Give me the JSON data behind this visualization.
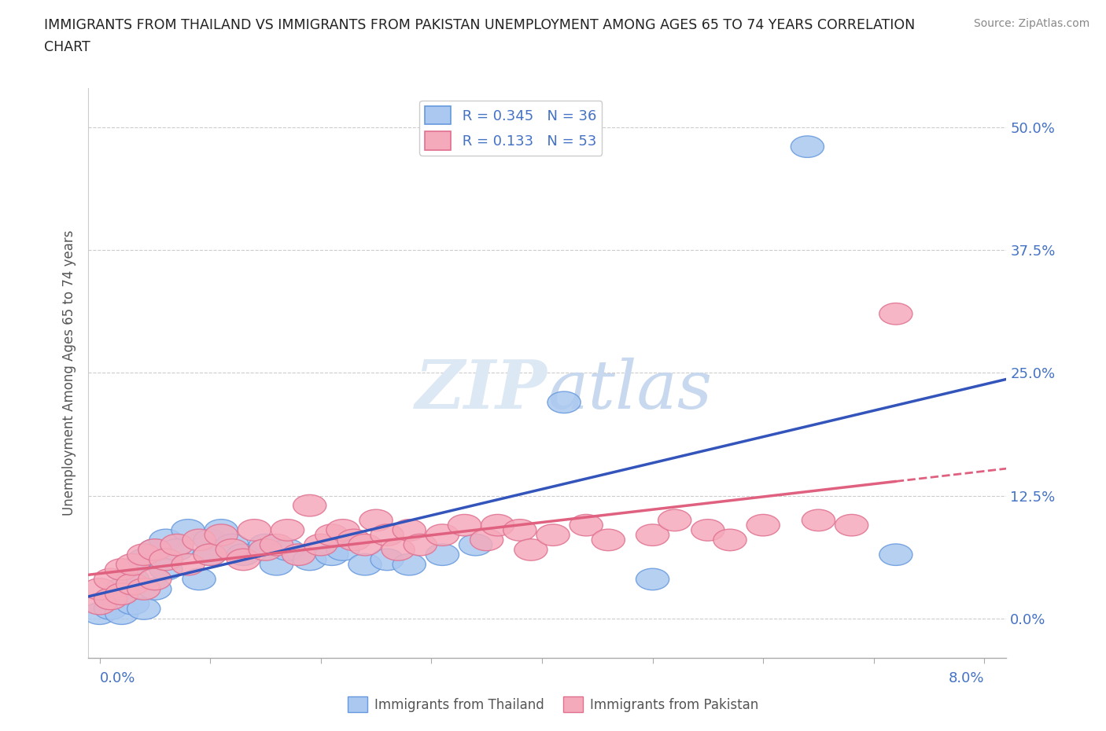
{
  "title_line1": "IMMIGRANTS FROM THAILAND VS IMMIGRANTS FROM PAKISTAN UNEMPLOYMENT AMONG AGES 65 TO 74 YEARS CORRELATION",
  "title_line2": "CHART",
  "source": "Source: ZipAtlas.com",
  "ylabel": "Unemployment Among Ages 65 to 74 years",
  "ytick_labels": [
    "0.0%",
    "12.5%",
    "25.0%",
    "37.5%",
    "50.0%"
  ],
  "ytick_values": [
    0.0,
    0.125,
    0.25,
    0.375,
    0.5
  ],
  "xlim": [
    -0.001,
    0.082
  ],
  "ylim": [
    -0.04,
    0.54
  ],
  "legend_r_thailand": "0.345",
  "legend_n_thailand": "36",
  "legend_r_pakistan": "0.133",
  "legend_n_pakistan": "53",
  "thailand_color": "#aac8f0",
  "thailand_edge": "#6699dd",
  "pakistan_color": "#f5aabb",
  "pakistan_edge": "#e07090",
  "thailand_line_color": "#3355bb",
  "pakistan_line_color": "#e06080",
  "watermark_color": "#dde8f5",
  "thailand_x": [
    0.0,
    0.001,
    0.001,
    0.002,
    0.002,
    0.003,
    0.003,
    0.004,
    0.004,
    0.005,
    0.005,
    0.006,
    0.006,
    0.007,
    0.008,
    0.009,
    0.01,
    0.01,
    0.011,
    0.012,
    0.013,
    0.015,
    0.016,
    0.017,
    0.019,
    0.021,
    0.022,
    0.024,
    0.026,
    0.028,
    0.031,
    0.034,
    0.042,
    0.05,
    0.064,
    0.072
  ],
  "thailand_y": [
    0.005,
    0.01,
    0.02,
    0.005,
    0.03,
    0.015,
    0.04,
    0.01,
    0.06,
    0.03,
    0.07,
    0.05,
    0.08,
    0.07,
    0.09,
    0.04,
    0.08,
    0.065,
    0.09,
    0.075,
    0.065,
    0.075,
    0.055,
    0.07,
    0.06,
    0.065,
    0.07,
    0.055,
    0.06,
    0.055,
    0.065,
    0.075,
    0.22,
    0.04,
    0.48,
    0.065
  ],
  "pakistan_x": [
    0.0,
    0.0,
    0.001,
    0.001,
    0.002,
    0.002,
    0.003,
    0.003,
    0.004,
    0.004,
    0.005,
    0.005,
    0.006,
    0.007,
    0.008,
    0.009,
    0.01,
    0.011,
    0.012,
    0.013,
    0.014,
    0.015,
    0.016,
    0.017,
    0.018,
    0.019,
    0.02,
    0.021,
    0.022,
    0.023,
    0.024,
    0.025,
    0.026,
    0.027,
    0.028,
    0.029,
    0.031,
    0.033,
    0.035,
    0.036,
    0.038,
    0.039,
    0.041,
    0.044,
    0.046,
    0.05,
    0.052,
    0.055,
    0.057,
    0.06,
    0.065,
    0.068,
    0.072
  ],
  "pakistan_y": [
    0.015,
    0.03,
    0.02,
    0.04,
    0.025,
    0.05,
    0.035,
    0.055,
    0.03,
    0.065,
    0.04,
    0.07,
    0.06,
    0.075,
    0.055,
    0.08,
    0.065,
    0.085,
    0.07,
    0.06,
    0.09,
    0.07,
    0.075,
    0.09,
    0.065,
    0.115,
    0.075,
    0.085,
    0.09,
    0.08,
    0.075,
    0.1,
    0.085,
    0.07,
    0.09,
    0.075,
    0.085,
    0.095,
    0.08,
    0.095,
    0.09,
    0.07,
    0.085,
    0.095,
    0.08,
    0.085,
    0.1,
    0.09,
    0.08,
    0.095,
    0.1,
    0.095,
    0.31
  ],
  "xtick_positions": [
    0.0,
    0.01,
    0.02,
    0.03,
    0.04,
    0.05,
    0.06,
    0.07,
    0.08
  ]
}
